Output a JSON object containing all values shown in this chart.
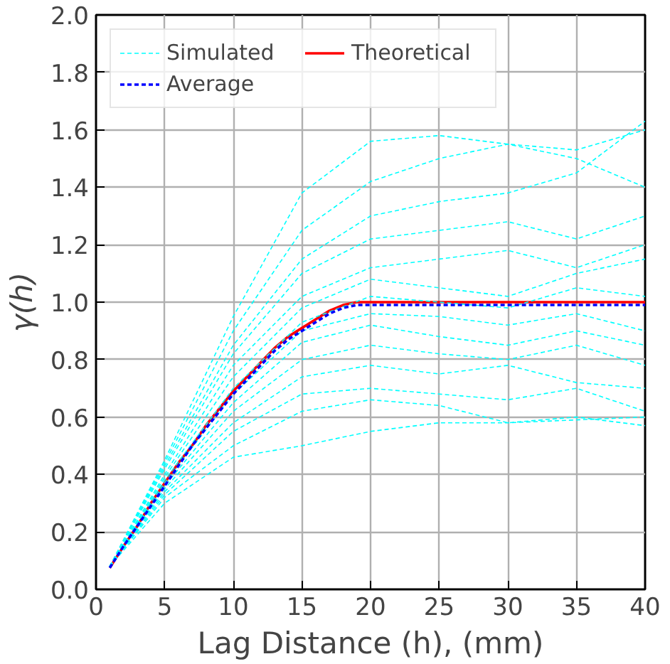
{
  "chart_data": {
    "type": "line",
    "xlabel": "Lag Distance (h), (mm)",
    "ylabel": "γ(h)",
    "xlim": [
      0,
      40
    ],
    "ylim": [
      0,
      2
    ],
    "xticks": [
      0,
      5,
      10,
      15,
      20,
      25,
      30,
      35,
      40
    ],
    "yticks": [
      {
        "value": 0,
        "label": "0.0"
      },
      0.2,
      0.4,
      0.6,
      0.8,
      {
        "value": 1,
        "label": "1.0"
      },
      1.2,
      1.4,
      1.6,
      1.8,
      {
        "value": 2,
        "label": "2.0"
      }
    ],
    "grid": true,
    "legend": "top left",
    "marker": "none",
    "series": [
      {
        "name": "Simulated",
        "color": "#00ffff",
        "line_style": "dashed",
        "x": [
          1,
          5,
          10,
          15,
          20,
          25,
          30,
          35,
          40
        ],
        "values": [
          0.08,
          0.45,
          0.95,
          1.38,
          1.56,
          1.58,
          1.55,
          1.53,
          1.6
        ]
      },
      {
        "color": "#00ffff",
        "line_style": "dashed",
        "x": [
          1,
          5,
          10,
          15,
          20,
          25,
          30,
          35,
          40
        ],
        "values": [
          0.08,
          0.44,
          0.9,
          1.25,
          1.42,
          1.5,
          1.55,
          1.5,
          1.4
        ]
      },
      {
        "color": "#00ffff",
        "line_style": "dashed",
        "x": [
          1,
          5,
          10,
          15,
          20,
          25,
          30,
          35,
          40
        ],
        "values": [
          0.08,
          0.43,
          0.85,
          1.15,
          1.3,
          1.35,
          1.38,
          1.45,
          1.63
        ]
      },
      {
        "color": "#00ffff",
        "line_style": "dashed",
        "x": [
          1,
          5,
          10,
          15,
          20,
          25,
          30,
          35,
          40
        ],
        "values": [
          0.08,
          0.42,
          0.82,
          1.1,
          1.22,
          1.25,
          1.28,
          1.22,
          1.3
        ]
      },
      {
        "color": "#00ffff",
        "line_style": "dashed",
        "x": [
          1,
          5,
          10,
          15,
          20,
          25,
          30,
          35,
          40
        ],
        "values": [
          0.08,
          0.4,
          0.78,
          1.02,
          1.12,
          1.15,
          1.18,
          1.12,
          1.2
        ]
      },
      {
        "color": "#00ffff",
        "line_style": "dashed",
        "x": [
          1,
          5,
          10,
          15,
          20,
          25,
          30,
          35,
          40
        ],
        "values": [
          0.08,
          0.39,
          0.74,
          0.98,
          1.08,
          1.05,
          1.02,
          1.1,
          1.15
        ]
      },
      {
        "color": "#00ffff",
        "line_style": "dashed",
        "x": [
          1,
          5,
          10,
          15,
          20,
          25,
          30,
          35,
          40
        ],
        "values": [
          0.08,
          0.38,
          0.7,
          0.93,
          1.02,
          1.0,
          0.98,
          1.05,
          1.02
        ]
      },
      {
        "color": "#00ffff",
        "line_style": "dashed",
        "x": [
          1,
          5,
          10,
          15,
          20,
          25,
          30,
          35,
          40
        ],
        "values": [
          0.08,
          0.37,
          0.68,
          0.9,
          0.96,
          0.95,
          0.92,
          0.96,
          0.9
        ]
      },
      {
        "color": "#00ffff",
        "line_style": "dashed",
        "x": [
          1,
          5,
          10,
          15,
          20,
          25,
          30,
          35,
          40
        ],
        "values": [
          0.08,
          0.36,
          0.65,
          0.86,
          0.92,
          0.88,
          0.85,
          0.9,
          0.85
        ]
      },
      {
        "color": "#00ffff",
        "line_style": "dashed",
        "x": [
          1,
          5,
          10,
          15,
          20,
          25,
          30,
          35,
          40
        ],
        "values": [
          0.08,
          0.35,
          0.62,
          0.8,
          0.85,
          0.82,
          0.8,
          0.85,
          0.78
        ]
      },
      {
        "color": "#00ffff",
        "line_style": "dashed",
        "x": [
          1,
          5,
          10,
          15,
          20,
          25,
          30,
          35,
          40
        ],
        "values": [
          0.08,
          0.34,
          0.58,
          0.74,
          0.78,
          0.75,
          0.78,
          0.72,
          0.7
        ]
      },
      {
        "color": "#00ffff",
        "line_style": "dashed",
        "x": [
          1,
          5,
          10,
          15,
          20,
          25,
          30,
          35,
          40
        ],
        "values": [
          0.08,
          0.33,
          0.55,
          0.68,
          0.7,
          0.68,
          0.66,
          0.7,
          0.62
        ]
      },
      {
        "color": "#00ffff",
        "line_style": "dashed",
        "x": [
          1,
          5,
          10,
          15,
          20,
          25,
          30,
          35,
          40
        ],
        "values": [
          0.08,
          0.32,
          0.5,
          0.62,
          0.66,
          0.64,
          0.58,
          0.6,
          0.57
        ]
      },
      {
        "color": "#00ffff",
        "line_style": "dashed",
        "x": [
          1,
          5,
          10,
          15,
          20,
          25,
          30,
          35,
          40
        ],
        "values": [
          0.08,
          0.3,
          0.46,
          0.5,
          0.55,
          0.58,
          0.58,
          0.59,
          0.6
        ]
      },
      {
        "name": "Average",
        "color": "#0000ff",
        "line_style": "dashed",
        "x": [
          1,
          2,
          3,
          4,
          5,
          6,
          7,
          8,
          9,
          10,
          11,
          12,
          13,
          14,
          15,
          16,
          17,
          18,
          19,
          20,
          40
        ],
        "values": [
          0.075,
          0.15,
          0.22,
          0.29,
          0.36,
          0.43,
          0.5,
          0.56,
          0.62,
          0.68,
          0.73,
          0.78,
          0.83,
          0.87,
          0.9,
          0.93,
          0.96,
          0.98,
          0.99,
          0.99,
          0.99
        ]
      },
      {
        "name": "Theoretical",
        "color": "#ff0000",
        "line_style": "solid",
        "x": [
          1,
          2,
          3,
          4,
          5,
          6,
          7,
          8,
          9,
          10,
          11,
          12,
          13,
          14,
          15,
          16,
          17,
          18,
          19,
          20,
          40
        ],
        "values": [
          0.075,
          0.15,
          0.22,
          0.3,
          0.37,
          0.44,
          0.5,
          0.57,
          0.63,
          0.69,
          0.74,
          0.79,
          0.84,
          0.88,
          0.91,
          0.94,
          0.97,
          0.99,
          1.0,
          1.0,
          1.0
        ]
      }
    ]
  }
}
